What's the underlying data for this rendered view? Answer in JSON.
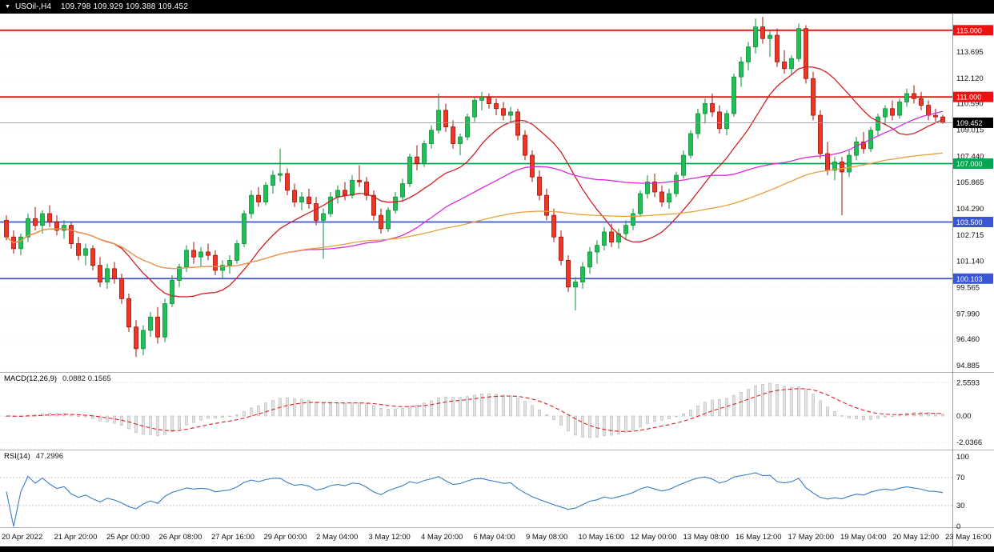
{
  "title_bar": {
    "dropdown_icon": "▼",
    "symbol": "USOil-,H4",
    "ohlc": "109.798 109.929 109.388 109.452"
  },
  "indicator_labels": {
    "macd": "MACD(12,26,9)",
    "macd_values": "0.0882 0.1565",
    "rsi": "RSI(14)",
    "rsi_value": "47.2996"
  },
  "chart_data": {
    "type": "candlestick",
    "symbol": "USOil-",
    "timeframe": "H4",
    "title": "USOil-,H4 109.798 109.929 109.388 109.452",
    "colors": {
      "up": "#1fbf55",
      "up_stroke": "#0c8f3a",
      "down": "#f03524",
      "down_stroke": "#a11005",
      "price_line": "#999999",
      "macd_signal": "#e02020",
      "macd_histogram": "#e3e3e3",
      "macd_histogram_stroke": "#ababab",
      "rsi_line": "#3b7dc4"
    },
    "candles": [
      [
        103.6,
        103.9,
        102.4,
        102.6
      ],
      [
        102.6,
        103.0,
        101.6,
        101.9
      ],
      [
        101.9,
        102.8,
        101.5,
        102.6
      ],
      [
        102.6,
        104.0,
        102.3,
        103.7
      ],
      [
        103.7,
        104.4,
        103.0,
        103.3
      ],
      [
        103.3,
        104.2,
        102.8,
        104.0
      ],
      [
        104.0,
        104.5,
        103.2,
        103.5
      ],
      [
        103.5,
        103.9,
        102.7,
        103.0
      ],
      [
        103.0,
        103.6,
        102.5,
        103.3
      ],
      [
        103.3,
        103.5,
        101.9,
        102.2
      ],
      [
        102.2,
        102.6,
        101.2,
        101.5
      ],
      [
        101.5,
        102.2,
        100.9,
        101.9
      ],
      [
        101.9,
        102.1,
        100.6,
        100.9
      ],
      [
        100.9,
        101.4,
        99.6,
        99.9
      ],
      [
        99.9,
        101.0,
        99.5,
        100.7
      ],
      [
        100.7,
        101.1,
        99.8,
        100.1
      ],
      [
        100.1,
        100.4,
        98.6,
        98.9
      ],
      [
        98.9,
        99.2,
        96.9,
        97.2
      ],
      [
        97.2,
        97.6,
        95.4,
        95.9
      ],
      [
        95.9,
        97.3,
        95.5,
        97.0
      ],
      [
        97.0,
        98.1,
        96.6,
        97.8
      ],
      [
        97.8,
        98.4,
        96.2,
        96.6
      ],
      [
        96.6,
        98.9,
        96.3,
        98.6
      ],
      [
        98.6,
        100.3,
        98.4,
        100.0
      ],
      [
        100.0,
        101.0,
        99.6,
        100.8
      ],
      [
        100.8,
        102.1,
        100.5,
        101.8
      ],
      [
        101.8,
        102.3,
        101.0,
        101.4
      ],
      [
        101.4,
        102.0,
        100.8,
        101.7
      ],
      [
        101.7,
        102.2,
        101.2,
        101.5
      ],
      [
        101.5,
        101.8,
        100.3,
        100.6
      ],
      [
        100.6,
        101.2,
        100.1,
        100.9
      ],
      [
        100.9,
        101.5,
        100.4,
        101.2
      ],
      [
        101.2,
        102.4,
        101.0,
        102.2
      ],
      [
        102.2,
        104.2,
        102.0,
        104.0
      ],
      [
        104.0,
        105.4,
        103.7,
        105.1
      ],
      [
        105.1,
        105.6,
        104.4,
        104.7
      ],
      [
        104.7,
        105.9,
        104.5,
        105.7
      ],
      [
        105.7,
        106.6,
        105.2,
        106.3
      ],
      [
        106.3,
        107.9,
        105.9,
        106.4
      ],
      [
        106.4,
        106.7,
        105.1,
        105.4
      ],
      [
        105.4,
        105.8,
        104.4,
        104.7
      ],
      [
        104.7,
        105.3,
        104.2,
        105.0
      ],
      [
        105.0,
        105.5,
        104.3,
        104.6
      ],
      [
        104.6,
        105.0,
        103.3,
        103.6
      ],
      [
        103.6,
        104.3,
        101.3,
        104.0
      ],
      [
        104.0,
        105.3,
        103.8,
        105.0
      ],
      [
        105.0,
        105.7,
        104.6,
        105.4
      ],
      [
        105.4,
        105.9,
        104.8,
        105.1
      ],
      [
        105.1,
        106.3,
        104.9,
        106.0
      ],
      [
        106.0,
        106.9,
        105.6,
        105.9
      ],
      [
        105.9,
        106.2,
        104.8,
        105.1
      ],
      [
        105.1,
        105.4,
        103.6,
        103.9
      ],
      [
        103.9,
        104.3,
        102.8,
        103.1
      ],
      [
        103.1,
        104.4,
        102.9,
        104.2
      ],
      [
        104.2,
        105.3,
        104.0,
        105.0
      ],
      [
        105.0,
        106.1,
        104.7,
        105.8
      ],
      [
        105.8,
        107.6,
        105.6,
        107.4
      ],
      [
        107.4,
        108.1,
        106.6,
        107.0
      ],
      [
        107.0,
        108.4,
        106.8,
        108.2
      ],
      [
        108.2,
        109.3,
        107.9,
        109.0
      ],
      [
        109.0,
        111.2,
        108.8,
        110.2
      ],
      [
        110.2,
        110.6,
        108.9,
        109.2
      ],
      [
        109.2,
        109.6,
        107.9,
        108.2
      ],
      [
        108.2,
        108.8,
        107.5,
        108.6
      ],
      [
        108.6,
        110.0,
        108.4,
        109.8
      ],
      [
        109.8,
        111.0,
        109.5,
        110.8
      ],
      [
        110.8,
        111.3,
        110.2,
        111.0
      ],
      [
        111.0,
        111.2,
        110.3,
        110.6
      ],
      [
        110.6,
        110.9,
        109.9,
        110.3
      ],
      [
        110.3,
        110.7,
        109.6,
        109.9
      ],
      [
        109.9,
        110.4,
        109.4,
        110.1
      ],
      [
        110.1,
        110.3,
        108.4,
        108.7
      ],
      [
        108.7,
        109.0,
        107.2,
        107.5
      ],
      [
        107.5,
        107.8,
        105.9,
        106.2
      ],
      [
        106.2,
        106.6,
        104.8,
        105.1
      ],
      [
        105.1,
        105.5,
        103.6,
        103.9
      ],
      [
        103.9,
        104.3,
        102.3,
        102.6
      ],
      [
        102.6,
        103.0,
        100.9,
        101.2
      ],
      [
        101.2,
        101.5,
        99.3,
        99.6
      ],
      [
        99.6,
        100.2,
        98.2,
        99.9
      ],
      [
        99.9,
        101.1,
        99.5,
        100.8
      ],
      [
        100.8,
        102.0,
        100.4,
        101.7
      ],
      [
        101.7,
        102.4,
        101.0,
        102.1
      ],
      [
        102.1,
        103.2,
        101.8,
        102.9
      ],
      [
        102.9,
        103.4,
        102.0,
        102.3
      ],
      [
        102.3,
        103.1,
        101.9,
        102.8
      ],
      [
        102.8,
        103.6,
        102.4,
        103.3
      ],
      [
        103.3,
        104.3,
        103.0,
        104.0
      ],
      [
        104.0,
        105.4,
        103.8,
        105.2
      ],
      [
        105.2,
        106.3,
        104.9,
        105.9
      ],
      [
        105.9,
        106.4,
        105.0,
        105.3
      ],
      [
        105.3,
        105.7,
        104.4,
        104.7
      ],
      [
        104.7,
        105.5,
        104.3,
        105.2
      ],
      [
        105.2,
        106.5,
        105.0,
        106.3
      ],
      [
        106.3,
        107.8,
        106.1,
        107.5
      ],
      [
        107.5,
        109.0,
        107.3,
        108.8
      ],
      [
        108.8,
        110.3,
        108.5,
        110.0
      ],
      [
        110.0,
        110.9,
        109.4,
        110.6
      ],
      [
        110.6,
        111.2,
        109.8,
        110.1
      ],
      [
        110.1,
        110.5,
        108.8,
        109.1
      ],
      [
        109.1,
        110.2,
        108.7,
        110.0
      ],
      [
        110.0,
        112.4,
        109.8,
        112.2
      ],
      [
        112.2,
        113.4,
        111.6,
        113.1
      ],
      [
        113.1,
        114.3,
        112.6,
        114.0
      ],
      [
        114.0,
        115.7,
        113.6,
        115.2
      ],
      [
        115.2,
        115.8,
        114.2,
        114.5
      ],
      [
        114.5,
        115.0,
        113.4,
        114.7
      ],
      [
        114.7,
        115.1,
        112.8,
        113.1
      ],
      [
        113.1,
        113.8,
        112.4,
        112.7
      ],
      [
        112.7,
        113.5,
        112.3,
        113.3
      ],
      [
        113.3,
        115.4,
        113.1,
        115.1
      ],
      [
        115.1,
        115.3,
        111.8,
        112.1
      ],
      [
        112.1,
        112.5,
        109.6,
        109.9
      ],
      [
        109.9,
        110.2,
        107.3,
        107.6
      ],
      [
        107.6,
        108.3,
        106.3,
        106.6
      ],
      [
        106.6,
        107.4,
        106.0,
        107.1
      ],
      [
        107.1,
        107.4,
        103.9,
        106.5
      ],
      [
        106.5,
        107.8,
        106.2,
        107.5
      ],
      [
        107.5,
        108.6,
        107.2,
        108.3
      ],
      [
        108.3,
        108.9,
        107.6,
        107.9
      ],
      [
        107.9,
        109.2,
        107.7,
        109.0
      ],
      [
        109.0,
        110.0,
        108.7,
        109.8
      ],
      [
        109.8,
        110.5,
        109.3,
        110.3
      ],
      [
        110.3,
        110.8,
        109.6,
        109.9
      ],
      [
        109.9,
        110.9,
        109.7,
        110.7
      ],
      [
        110.7,
        111.5,
        110.4,
        111.2
      ],
      [
        111.2,
        111.7,
        110.6,
        110.9
      ],
      [
        110.9,
        111.3,
        110.2,
        110.5
      ],
      [
        110.5,
        110.8,
        109.6,
        109.9
      ],
      [
        109.9,
        110.3,
        109.5,
        109.8
      ],
      [
        109.798,
        109.929,
        109.388,
        109.452
      ]
    ],
    "price_axis_ticks": [
      "113.695",
      "112.120",
      "110.590",
      "109.015",
      "107.440",
      "105.865",
      "104.290",
      "102.715",
      "101.140",
      "99.565",
      "97.990",
      "96.460",
      "94.885"
    ],
    "h_lines": [
      {
        "price": 115.0,
        "label": "115.000",
        "color": "#ee1111"
      },
      {
        "price": 111.0,
        "label": "111.000",
        "color": "#ee1111"
      },
      {
        "price": 107.0,
        "label": "107.000",
        "color": "#00a650"
      },
      {
        "price": 103.5,
        "label": "103.500",
        "color": "#3a56d4"
      },
      {
        "price": 100.103,
        "label": "100.103",
        "color": "#3a56d4"
      }
    ],
    "current_price": {
      "value": 109.452,
      "label": "109.452",
      "tag_color": "#000000"
    },
    "moving_averages": [
      {
        "period": 14,
        "color": "#cc2222"
      },
      {
        "period": 40,
        "color": "#d92bd9"
      },
      {
        "period": 90,
        "color": "#e8a13c"
      }
    ],
    "indicators": {
      "macd": {
        "label": "MACD(12,26,9)",
        "values_text": "0.0882 0.1565",
        "params": [
          12,
          26,
          9
        ],
        "axis_ticks": [
          "2.5593",
          "0.00",
          "-2.0366"
        ]
      },
      "rsi": {
        "label": "RSI(14)",
        "value_text": "47.2996",
        "period": 14,
        "axis_ticks": [
          "100",
          "70",
          "30",
          "0"
        ],
        "levels": [
          70,
          30
        ]
      }
    },
    "time_axis_labels": [
      "20 Apr 2022",
      "21 Apr 20:00",
      "25 Apr 00:00",
      "26 Apr 08:00",
      "27 Apr 16:00",
      "29 Apr 00:00",
      "2 May 04:00",
      "3 May 12:00",
      "4 May 20:00",
      "6 May 04:00",
      "9 May 08:00",
      "10 May 16:00",
      "12 May 00:00",
      "13 May 08:00",
      "16 May 12:00",
      "17 May 20:00",
      "19 May 04:00",
      "20 May 12:00",
      "23 May 16:00"
    ]
  }
}
